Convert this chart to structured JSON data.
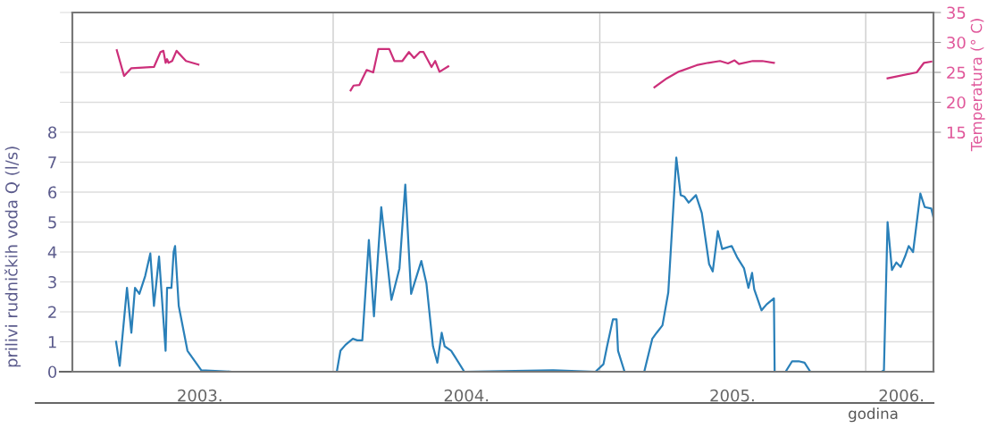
{
  "chart_data": {
    "type": "line",
    "xlabel": "godina",
    "ylabel": "prilivi rudničkih voda Q (l/s)",
    "y2label": "Temperatura (° C)",
    "xlim": [
      "2003-01-08",
      "2006-04-04"
    ],
    "xticks": [
      {
        "value": "2003-07-02",
        "label": "2003."
      },
      {
        "value": "2004-07-02",
        "label": "2004."
      },
      {
        "value": "2005-07-02",
        "label": "2005."
      },
      {
        "value": "2006-02-19",
        "label": "2006."
      }
    ],
    "ylim": [
      0,
      12
    ],
    "yticks": [
      0,
      1,
      2,
      3,
      4,
      5,
      6,
      7,
      8,
      {
        "value": 9,
        "label": null
      },
      {
        "value": 10,
        "label": null
      },
      {
        "value": 11,
        "label": null
      },
      {
        "value": 12,
        "label": null
      }
    ],
    "y2lim": [
      -25,
      35
    ],
    "y2ticks": [
      15,
      20,
      25,
      30,
      35
    ],
    "grid": "y",
    "marker": "none",
    "line_style": "solid",
    "ref_lines": [
      {
        "axis": "x",
        "value": "2004-01-01",
        "color": "#cccccc"
      },
      {
        "axis": "x",
        "value": "2005-01-01",
        "color": "#cccccc"
      },
      {
        "axis": "x",
        "value": "2006-01-01",
        "color": "#cccccc"
      }
    ],
    "series": [
      {
        "color": "#2a80b9",
        "x": [
          "2003-03-09",
          "2003-03-14",
          "2003-03-24",
          "2003-03-30",
          "2003-04-04",
          "2003-04-10",
          "2003-04-18",
          "2003-04-25",
          "2003-04-30",
          "2003-05-07",
          "2003-05-16",
          "2003-05-18",
          "2003-05-24",
          "2003-05-27",
          "2003-05-29",
          "2003-06-03",
          "2003-06-15",
          "2003-07-04",
          "2003-08-15",
          "2004-01-06",
          "2004-01-11",
          "2004-01-18",
          "2004-01-28",
          "2004-02-03",
          "2004-02-10",
          "2004-02-19",
          "2004-02-26",
          "2004-03-07",
          "2004-03-21",
          "2004-04-01",
          "2004-04-09",
          "2004-04-17",
          "2004-05-01",
          "2004-05-08",
          "2004-05-17",
          "2004-05-23",
          "2004-05-29",
          "2004-06-02",
          "2004-06-11",
          "2004-06-29",
          "2004-10-29",
          "2004-12-26",
          "2005-01-06",
          "2005-01-11",
          "2005-01-19",
          "2005-01-24",
          "2005-01-26",
          "2005-02-04",
          "2005-03-03",
          "2005-03-14",
          "2005-03-20",
          "2005-03-28",
          "2005-04-05",
          "2005-04-16",
          "2005-04-22",
          "2005-04-27",
          "2005-05-03",
          "2005-05-13",
          "2005-05-21",
          "2005-05-31",
          "2005-06-05",
          "2005-06-12",
          "2005-06-18",
          "2005-07-01",
          "2005-07-09",
          "2005-07-18",
          "2005-07-24",
          "2005-07-29",
          "2005-08-01",
          "2005-08-11",
          "2005-08-18",
          "2005-08-28",
          "2005-08-29",
          "2005-09-13",
          "2005-09-22",
          "2005-10-01",
          "2005-10-09",
          "2005-10-17",
          "2006-01-23",
          "2006-01-26",
          "2006-01-31",
          "2006-02-06",
          "2006-02-12",
          "2006-02-18",
          "2006-02-24",
          "2006-03-01",
          "2006-03-07",
          "2006-03-17",
          "2006-03-23",
          "2006-04-01",
          "2006-04-04"
        ],
        "values": [
          1.0,
          0.2,
          2.8,
          1.3,
          2.8,
          2.6,
          3.2,
          3.95,
          2.2,
          3.85,
          0.7,
          2.8,
          2.8,
          4.0,
          4.2,
          2.2,
          0.7,
          0.05,
          0,
          0,
          0.7,
          0.9,
          1.1,
          1.05,
          1.05,
          4.4,
          1.85,
          5.5,
          2.4,
          3.45,
          6.25,
          2.6,
          3.7,
          2.95,
          0.85,
          0.3,
          1.3,
          0.85,
          0.7,
          0,
          0.05,
          0,
          0.25,
          0.85,
          1.75,
          1.75,
          0.7,
          0,
          0,
          1.1,
          1.3,
          1.55,
          2.65,
          7.15,
          5.9,
          5.85,
          5.65,
          5.9,
          5.3,
          3.6,
          3.35,
          4.7,
          4.1,
          4.2,
          3.8,
          3.45,
          2.8,
          3.3,
          2.75,
          2.05,
          2.25,
          2.45,
          0,
          0,
          0.35,
          0.35,
          0.3,
          0,
          0,
          0.05,
          5.0,
          3.4,
          3.65,
          3.5,
          3.85,
          4.2,
          4.0,
          5.95,
          5.5,
          5.45,
          5.15
        ]
      },
      {
        "color": "#cc2f7a",
        "axis": "y2",
        "x": [
          "2003-03-10",
          "2003-03-20",
          "2003-03-30",
          "2003-04-30",
          "2003-05-09",
          "2003-05-13",
          "2003-05-16",
          "2003-05-18",
          "2003-05-20",
          "2003-05-25",
          "2003-05-31",
          "2003-06-13",
          "2003-06-30",
          "2003-10-01",
          "2004-01-25",
          "2004-01-29",
          "2004-02-06",
          "2004-02-16",
          "2004-02-25",
          "2004-03-03",
          "2004-03-18",
          "2004-03-25",
          "2004-04-05",
          "2004-04-14",
          "2004-04-21",
          "2004-04-29",
          "2004-05-04",
          "2004-05-15",
          "2004-05-20",
          "2004-05-26",
          "2004-06-07",
          "2004-10-01",
          "2005-03-17",
          "2005-04-03",
          "2005-04-19",
          "2005-05-14",
          "2005-05-30",
          "2005-06-15",
          "2005-06-26",
          "2005-07-05",
          "2005-07-11",
          "2005-07-30",
          "2005-08-12",
          "2005-08-28",
          "2005-11-01",
          "2006-01-31",
          "2006-03-12",
          "2006-03-22",
          "2006-04-01"
        ],
        "values": [
          28.7,
          24.4,
          25.7,
          25.9,
          28.4,
          28.6,
          26.6,
          27.2,
          26.6,
          26.9,
          28.6,
          26.9,
          26.3,
          null,
          22.0,
          22.8,
          22.9,
          25.4,
          25.0,
          28.9,
          28.9,
          26.9,
          26.9,
          28.4,
          27.4,
          28.4,
          28.4,
          25.9,
          26.9,
          25.1,
          26.0,
          null,
          22.5,
          24.0,
          25.1,
          26.2,
          26.6,
          26.9,
          26.5,
          27.0,
          26.4,
          26.9,
          26.9,
          26.6,
          null,
          24.0,
          25.0,
          26.6,
          26.8
        ]
      }
    ]
  }
}
